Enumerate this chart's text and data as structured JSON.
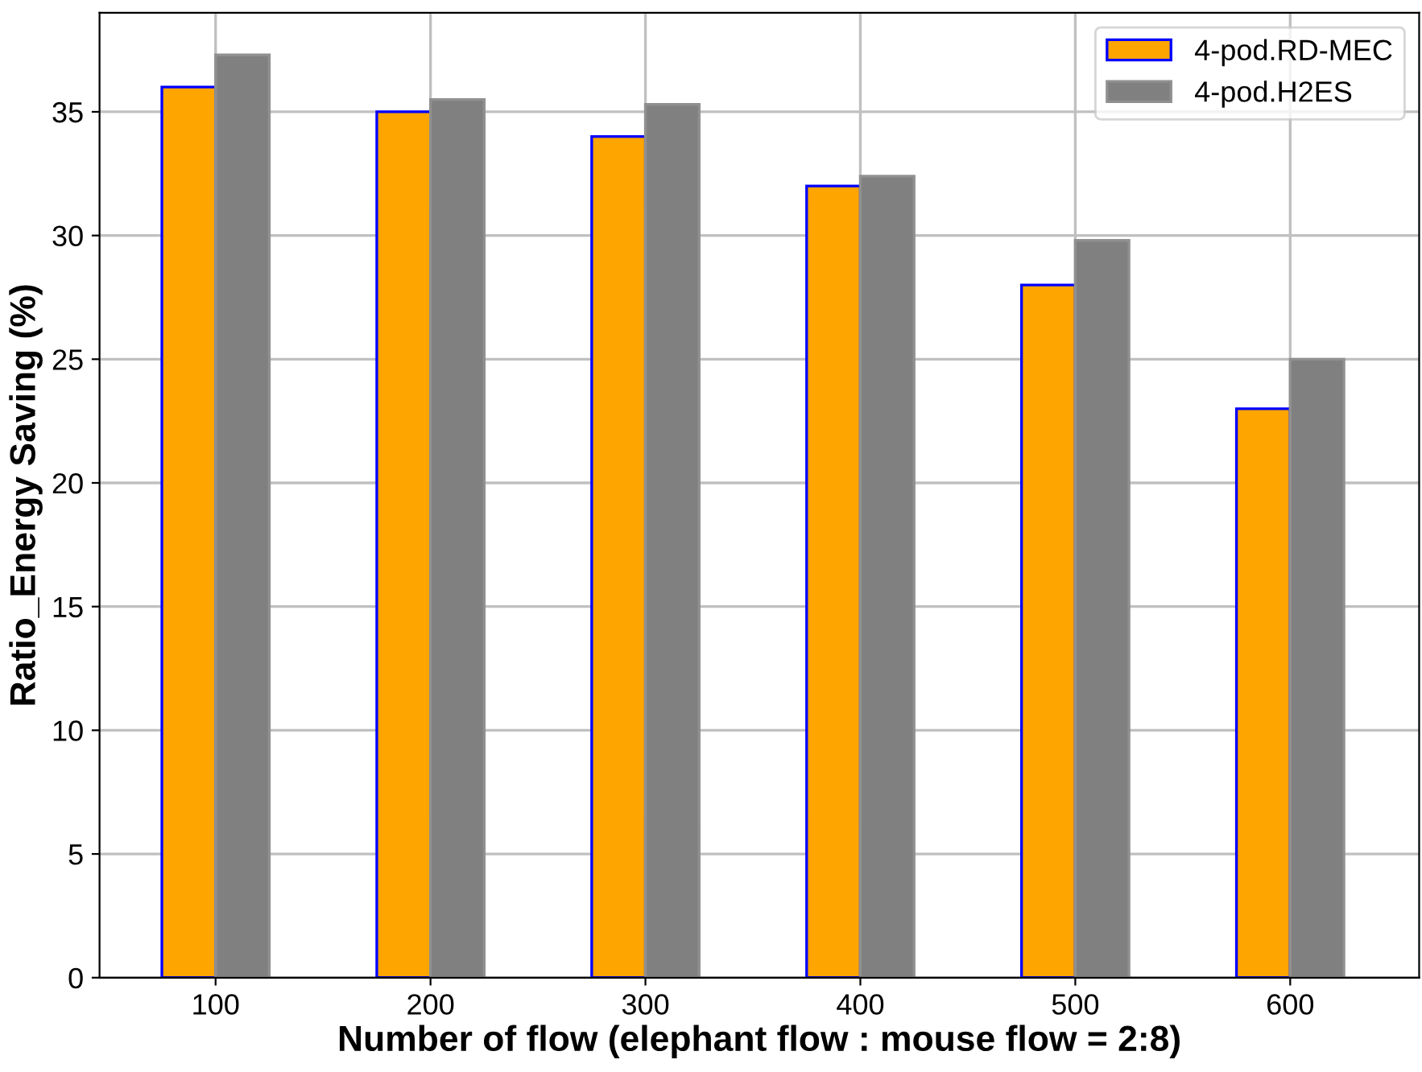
{
  "chart_data": {
    "type": "bar",
    "xlabel": "Number of flow (elephant flow : mouse flow = 2:8)",
    "ylabel": "Ratio_Energy Saving (%)",
    "categories": [
      "100",
      "200",
      "300",
      "400",
      "500",
      "600"
    ],
    "series": [
      {
        "name": "4-pod.RD-MEC",
        "color": "#ffa500",
        "values": [
          36,
          35,
          34,
          32,
          28,
          23
        ]
      },
      {
        "name": "4-pod.H2ES",
        "color": "#808080",
        "values": [
          37.3,
          35.5,
          35.3,
          32.4,
          29.8,
          25.0
        ]
      }
    ],
    "ylim": [
      0,
      39
    ],
    "yticks": [
      0,
      5,
      10,
      15,
      20,
      25,
      30,
      35
    ],
    "grid": true,
    "legend": "top right"
  }
}
